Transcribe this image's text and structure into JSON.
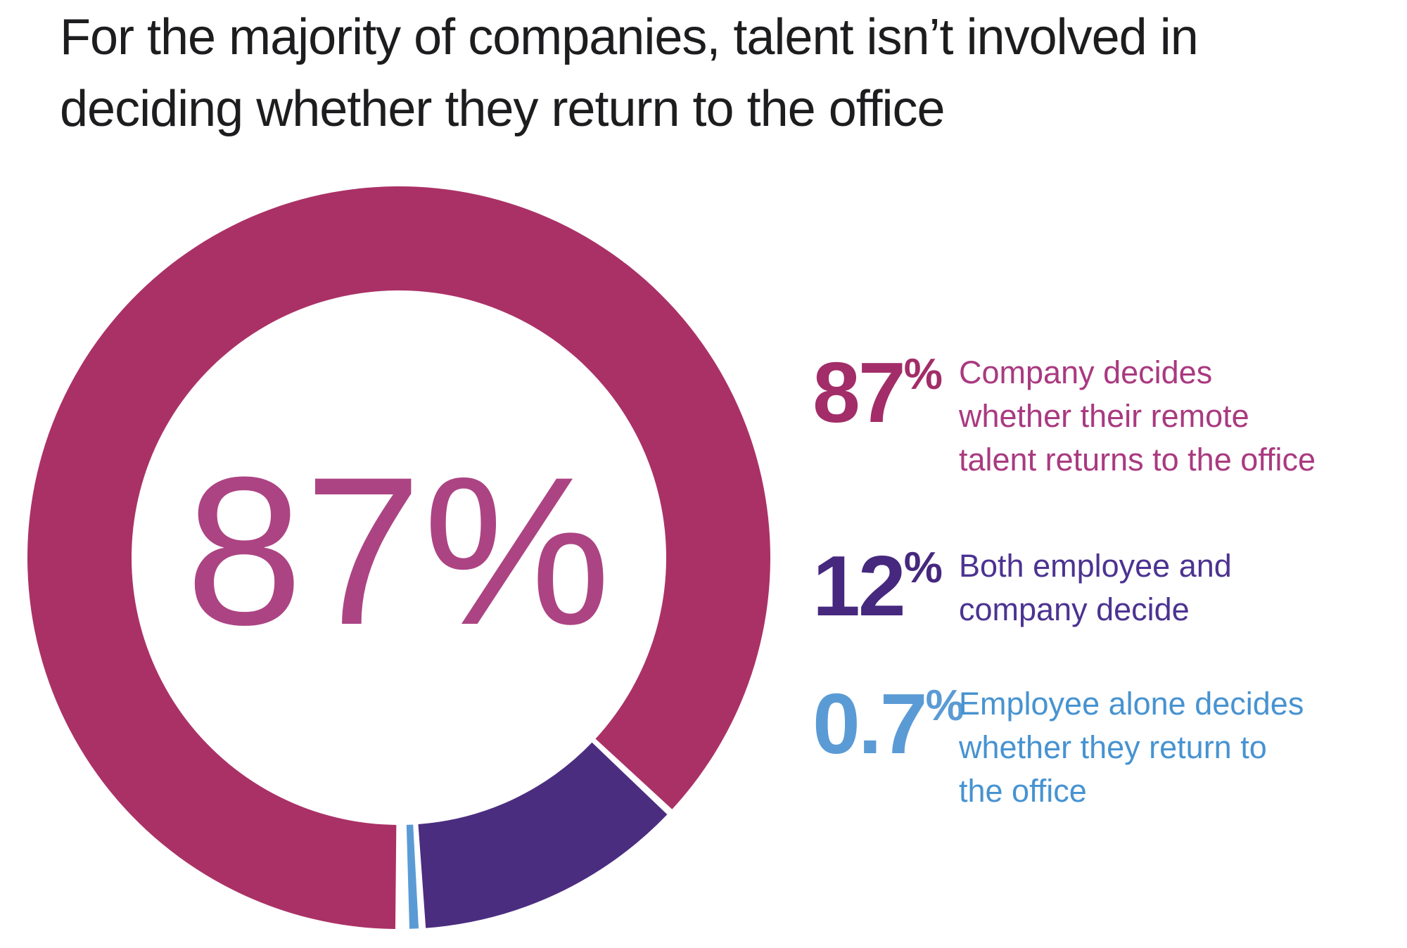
{
  "title": {
    "lines": [
      "For the majority of companies, talent isn’t involved in",
      "deciding whether they return to the office"
    ],
    "full": "For the majority of companies, talent isn’t involved in deciding whether they return to the office"
  },
  "chart_data": {
    "type": "pie",
    "donut": true,
    "title": "For the majority of companies, talent isn’t involved in deciding whether they return to the office",
    "center_label": "87%",
    "center_label_color": "#ac4483",
    "start_angle_deg": 180,
    "direction": "clockwise",
    "units": "%",
    "legend_position": "right",
    "gap_deg": 0.55,
    "segments": [
      {
        "label": "Company decides whether their remote talent returns to the office",
        "value": 87,
        "color": "#aa3166"
      },
      {
        "label": "Both employee and company decide",
        "value": 12,
        "color": "#4b2d80"
      },
      {
        "label": "Employee alone decides whether they return to the office",
        "value": 0.7,
        "color": "#5b9bd5"
      }
    ]
  },
  "donut": {
    "center_label": "87%"
  },
  "legend": {
    "items": [
      {
        "value": "87",
        "pct_sign": "%",
        "number_color": "#a22d68",
        "text_color": "#a93a80",
        "lines": [
          "Company decides",
          "whether their remote",
          "talent returns to the office"
        ]
      },
      {
        "value": "12",
        "pct_sign": "%",
        "number_color": "#46287e",
        "text_color": "#4c3391",
        "lines": [
          "Both employee and",
          "company decide"
        ]
      },
      {
        "value": "0.7",
        "pct_sign": "%",
        "number_color": "#5b9bd5",
        "text_color": "#4793d1",
        "lines": [
          "Employee alone decides",
          "whether they return to",
          "the office"
        ]
      }
    ]
  }
}
